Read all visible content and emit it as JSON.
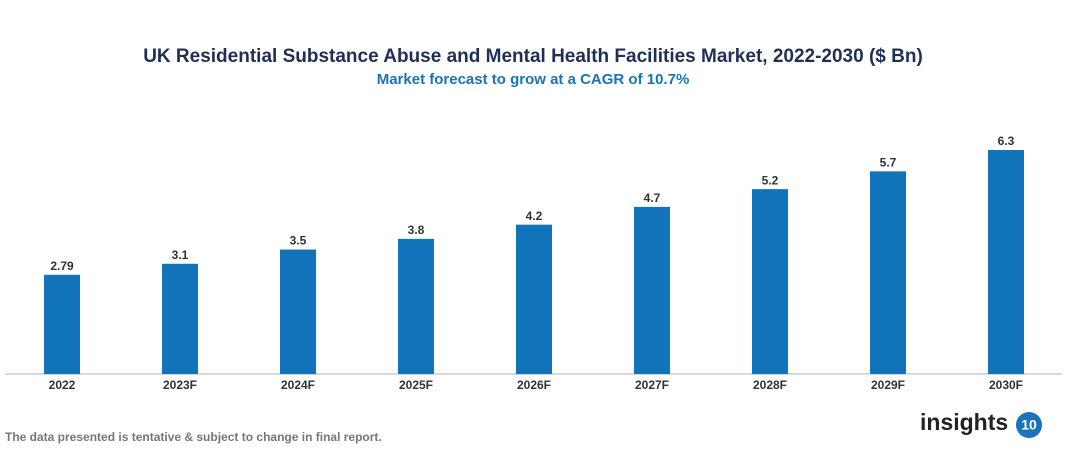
{
  "chart_data": {
    "type": "bar",
    "title": "UK Residential Substance Abuse and Mental Health Facilities Market, 2022-2030 ($ Bn)",
    "subtitle": "Market forecast to grow at a CAGR of 10.7%",
    "categories": [
      "2022",
      "2023F",
      "2024F",
      "2025F",
      "2026F",
      "2027F",
      "2028F",
      "2029F",
      "2030F"
    ],
    "values": [
      2.79,
      3.1,
      3.5,
      3.8,
      4.2,
      4.7,
      5.2,
      5.7,
      6.3
    ],
    "color": "#1174bb"
  },
  "footer": "The data presented is tentative & subject to change in final report.",
  "logo": {
    "text": "insights",
    "badge": "10"
  }
}
